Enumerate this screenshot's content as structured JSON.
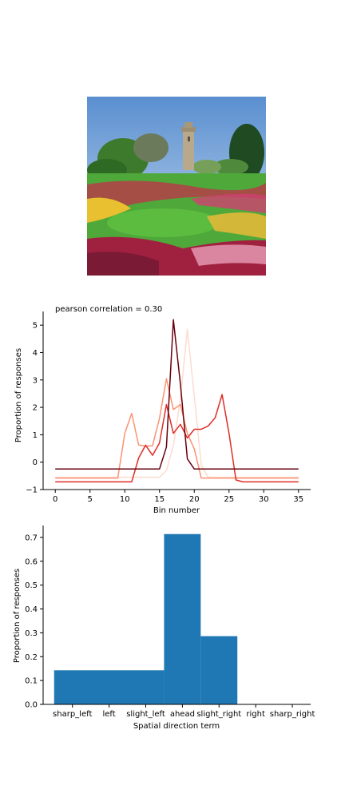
{
  "chart_data": [
    {
      "type": "line",
      "title": "pearson correlation = 0.30",
      "xlabel": "Bin number",
      "ylabel": "Proportion of responses",
      "xlim": [
        -1.75,
        36.75
      ],
      "ylim": [
        -1,
        5.5
      ],
      "xticks": [
        0,
        5,
        10,
        15,
        20,
        25,
        30,
        35
      ],
      "yticks": [
        -1,
        0,
        1,
        2,
        3,
        4,
        5
      ],
      "grid": false,
      "series": [
        {
          "color": "#fcdccf",
          "x": [
            0,
            1,
            2,
            3,
            4,
            5,
            6,
            7,
            8,
            9,
            10,
            11,
            12,
            13,
            14,
            15,
            16,
            17,
            18,
            19,
            20,
            21,
            22,
            23,
            24,
            25,
            26,
            27,
            28,
            29,
            30,
            31,
            32,
            33,
            34,
            35
          ],
          "y": [
            -0.55,
            -0.55,
            -0.55,
            -0.55,
            -0.55,
            -0.55,
            -0.55,
            -0.55,
            -0.55,
            -0.55,
            -0.55,
            -0.55,
            -0.55,
            -0.55,
            -0.55,
            -0.55,
            -0.3,
            0.6,
            2.3,
            4.85,
            2.4,
            -0.1,
            -0.55,
            -0.55,
            -0.55,
            -0.55,
            -0.55,
            -0.55,
            -0.55,
            -0.55,
            -0.55,
            -0.55,
            -0.55,
            -0.55,
            -0.55,
            -0.55
          ]
        },
        {
          "color": "#fc9272",
          "x": [
            0,
            1,
            2,
            3,
            4,
            5,
            6,
            7,
            8,
            9,
            10,
            11,
            12,
            13,
            14,
            15,
            16,
            17,
            18,
            19,
            20,
            21,
            22,
            23,
            24,
            25,
            26,
            27,
            28,
            29,
            30,
            31,
            32,
            33,
            34,
            35
          ],
          "y": [
            -0.58,
            -0.58,
            -0.58,
            -0.58,
            -0.58,
            -0.58,
            -0.58,
            -0.58,
            -0.58,
            -0.58,
            1.05,
            1.78,
            0.63,
            0.58,
            0.6,
            1.6,
            3.05,
            1.92,
            2.1,
            1.05,
            0.48,
            -0.58,
            -0.58,
            -0.58,
            -0.58,
            -0.58,
            -0.58,
            -0.58,
            -0.58,
            -0.58,
            -0.58,
            -0.58,
            -0.58,
            -0.58,
            -0.58,
            -0.58
          ]
        },
        {
          "color": "#de2d26",
          "x": [
            0,
            1,
            2,
            3,
            4,
            5,
            6,
            7,
            8,
            9,
            10,
            11,
            12,
            13,
            14,
            15,
            16,
            17,
            18,
            19,
            20,
            21,
            22,
            23,
            24,
            25,
            26,
            27,
            28,
            29,
            30,
            31,
            32,
            33,
            34,
            35
          ],
          "y": [
            -0.72,
            -0.72,
            -0.72,
            -0.72,
            -0.72,
            -0.72,
            -0.72,
            -0.72,
            -0.72,
            -0.72,
            -0.72,
            -0.72,
            0.15,
            0.62,
            0.25,
            0.7,
            2.1,
            1.05,
            1.38,
            0.88,
            1.2,
            1.2,
            1.32,
            1.62,
            2.47,
            1.05,
            -0.65,
            -0.72,
            -0.72,
            -0.72,
            -0.72,
            -0.72,
            -0.72,
            -0.72,
            -0.72,
            -0.72
          ]
        },
        {
          "color": "#67000d",
          "x": [
            0,
            1,
            2,
            3,
            4,
            5,
            6,
            7,
            8,
            9,
            10,
            11,
            12,
            13,
            14,
            15,
            16,
            17,
            18,
            19,
            20,
            21,
            22,
            23,
            24,
            25,
            26,
            27,
            28,
            29,
            30,
            31,
            32,
            33,
            34,
            35
          ],
          "y": [
            -0.25,
            -0.25,
            -0.25,
            -0.25,
            -0.25,
            -0.25,
            -0.25,
            -0.25,
            -0.25,
            -0.25,
            -0.25,
            -0.25,
            -0.25,
            -0.25,
            -0.25,
            -0.25,
            0.55,
            5.2,
            2.85,
            0.12,
            -0.25,
            -0.25,
            -0.25,
            -0.25,
            -0.25,
            -0.25,
            -0.25,
            -0.25,
            -0.25,
            -0.25,
            -0.25,
            -0.25,
            -0.25,
            -0.25,
            -0.25,
            -0.25
          ]
        }
      ]
    },
    {
      "type": "bar",
      "title": "",
      "xlabel": "Spatial direction term",
      "ylabel": "Proportion of responses",
      "categories": [
        "sharp_left",
        "left",
        "slight_left",
        "ahead",
        "slight_right",
        "right",
        "sharp_right"
      ],
      "bins": [
        {
          "start": 0,
          "end": 3,
          "value": 0.143
        },
        {
          "start": 3,
          "end": 4,
          "value": 0.714
        },
        {
          "start": 4,
          "end": 5,
          "value": 0.286
        }
      ],
      "xlim": [
        -0.3,
        7.0
      ],
      "ylim": [
        0,
        0.75
      ],
      "yticks": [
        0.0,
        0.1,
        0.2,
        0.3,
        0.4,
        0.5,
        0.6,
        0.7
      ],
      "bar_color": "#1f77b4",
      "grid": false
    }
  ]
}
